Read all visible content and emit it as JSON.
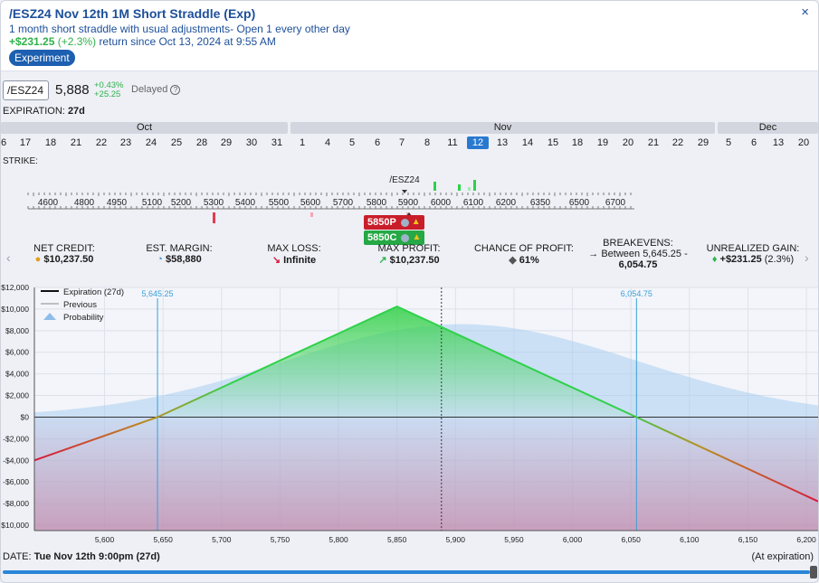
{
  "header": {
    "title": "/ESZ24 Nov 12th 1M Short Straddle (Exp)",
    "description": "1 month short straddle with usual adjustments- Open 1 every other day",
    "return_amount": "+$231.25",
    "return_pct": "(+2.3%)",
    "return_text": "return since Oct 13, 2024 at 9:55 AM",
    "badge": "Experiment",
    "close": "×"
  },
  "quote": {
    "symbol": "/ESZ24",
    "price": "5,888",
    "change_pct": "+0.43%",
    "change_abs": "+25.25",
    "delayed": "Delayed",
    "help": "?"
  },
  "expiration": {
    "label": "EXPIRATION:",
    "value": "27d"
  },
  "months": [
    {
      "name": "Oct"
    },
    {
      "name": "Nov"
    },
    {
      "name": "Dec"
    }
  ],
  "days": [
    "6",
    "17",
    "18",
    "21",
    "22",
    "23",
    "24",
    "25",
    "28",
    "29",
    "30",
    "31",
    "1",
    "4",
    "5",
    "6",
    "7",
    "8",
    "11",
    "12",
    "13",
    "14",
    "15",
    "18",
    "19",
    "20",
    "21",
    "22",
    "29",
    "5",
    "6",
    "13",
    "20"
  ],
  "selected_day": "12",
  "strike": {
    "label": "STRIKE:",
    "ticks": [
      "4600",
      "4800",
      "4950",
      "5100",
      "5200",
      "5300",
      "5400",
      "5500",
      "5600",
      "5700",
      "5800",
      "5900",
      "6000",
      "6100",
      "6200",
      "6350",
      "6500",
      "6700"
    ],
    "underlying": "/ESZ24",
    "put": "5850P",
    "call": "5850C"
  },
  "stats": {
    "net_credit_label": "NET CREDIT:",
    "net_credit": "$10,237.50",
    "margin_label": "EST. MARGIN:",
    "margin": "$58,880",
    "max_loss_label": "MAX LOSS:",
    "max_loss": "Infinite",
    "max_profit_label": "MAX PROFIT:",
    "max_profit": "$10,237.50",
    "pop_label": "CHANCE OF PROFIT:",
    "pop": "61%",
    "breakevens_label": "BREAKEVENS:",
    "breakevens_line1": "Between 5,645.25 -",
    "breakevens_line2": "6,054.75",
    "unrealized_label": "UNREALIZED GAIN:",
    "unrealized": "+$231.25",
    "unrealized_pct": "(2.3%)"
  },
  "colors": {
    "profit": "#2fd14a",
    "loss": "#d8193a",
    "accent": "#1d4f9a",
    "breakeven": "#3aa0d8",
    "prob": "#a9cdf0"
  },
  "chart_data": {
    "type": "line",
    "xlim": [
      5540,
      6210
    ],
    "ylim": [
      -10500,
      12000
    ],
    "xticks": [
      5600,
      5650,
      5700,
      5750,
      5800,
      5850,
      5900,
      5950,
      6000,
      6050,
      6100,
      6150,
      6200
    ],
    "xtick_labels": [
      "5,600",
      "5,650",
      "5,700",
      "5,750",
      "5,800",
      "5,850",
      "5,900",
      "5,950",
      "6,000",
      "6,050",
      "6,100",
      "6,150",
      "6,200"
    ],
    "yticks": [
      12000,
      10000,
      8000,
      6000,
      4000,
      2000,
      0,
      -2000,
      -4000,
      -6000,
      -8000,
      -10000
    ],
    "ytick_labels": [
      "$12,000",
      "$10,000",
      "$8,000",
      "$6,000",
      "$4,000",
      "$2,000",
      "$0",
      "-$2,000",
      "-$4,000",
      "-$6,000",
      "-$8,000",
      "-$10,000"
    ],
    "series": [
      {
        "name": "Expiration (27d)",
        "x": [
          5540,
          5645.25,
          5850,
          6054.75,
          6210
        ],
        "y": [
          -4000,
          0,
          10237.5,
          0,
          -7800
        ]
      },
      {
        "name": "Previous"
      },
      {
        "name": "Probability"
      }
    ],
    "breakevens": [
      5645.25,
      6054.75
    ],
    "breakeven_labels": [
      "5,645.25",
      "6,054.75"
    ],
    "current_price": 5888,
    "grid": true,
    "legend": "top-left"
  },
  "footer": {
    "date_label": "DATE:",
    "date_value": "Tue Nov 12th 9:00pm (27d)",
    "right": "(At expiration)"
  }
}
